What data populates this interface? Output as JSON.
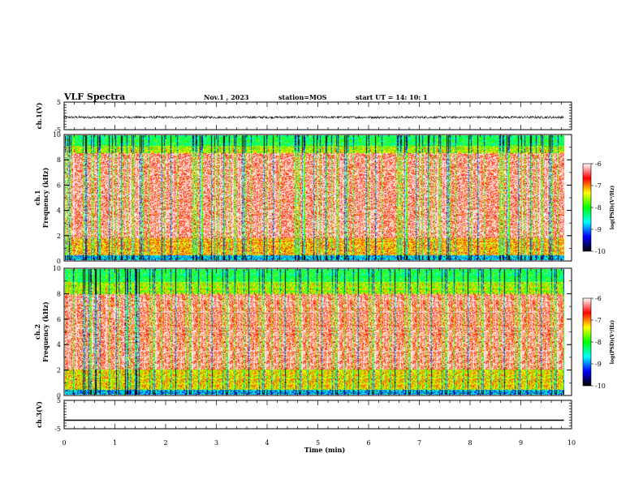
{
  "header": {
    "title": "VLF Spectra",
    "date": "Nov.1 , 2023",
    "station": "station=MOS",
    "start": "start UT = 14: 10: 1"
  },
  "chart_data": [
    {
      "type": "line",
      "panel": "ch1-waveform",
      "ylabel": "ch.1(V)",
      "ylim": [
        -5,
        5
      ],
      "yticks": [
        "5",
        "-5"
      ],
      "xlim": [
        0,
        10
      ],
      "series": [
        {
          "baseline_v": -0.5,
          "noise_amplitude_v": 0.4
        }
      ]
    },
    {
      "type": "heatmap",
      "panel": "ch1-spectrogram",
      "ylabel": "ch.1\nFrequency (kHz)",
      "ylim": [
        0,
        10
      ],
      "yticks": [
        "0",
        "2",
        "4",
        "6",
        "8",
        "10"
      ],
      "xlim": [
        0,
        9.85
      ],
      "colorbar": {
        "label": "log(PSD)(V²/Hz)",
        "range": [
          -10,
          -6
        ],
        "ticks": [
          "-6",
          "-7",
          "-8",
          "-9",
          "-10"
        ]
      }
    },
    {
      "type": "heatmap",
      "panel": "ch2-spectrogram",
      "ylabel": "ch.2\nFrequency (kHz)",
      "ylim": [
        0,
        10
      ],
      "yticks": [
        "0",
        "2",
        "4",
        "6",
        "8",
        "10"
      ],
      "xlim": [
        0,
        9.85
      ],
      "colorbar": {
        "label": "log(PSD)(V²/Hz)",
        "range": [
          -10,
          -6
        ],
        "ticks": [
          "-6",
          "-7",
          "-8",
          "-9",
          "-10"
        ]
      }
    },
    {
      "type": "line",
      "panel": "ch3-waveform",
      "ylabel": "ch.3(V)",
      "ylim": [
        -5,
        5
      ],
      "yticks": [
        "5",
        "-5"
      ],
      "xlim": [
        0,
        10
      ],
      "series": [
        {
          "constant_v": -2.0
        }
      ]
    }
  ],
  "xaxis": {
    "label": "Time (min)",
    "ticks": [
      "0",
      "1",
      "2",
      "3",
      "4",
      "5",
      "6",
      "7",
      "8",
      "9",
      "10"
    ]
  },
  "colors": {
    "frame": "#000000",
    "waveform": "#000000",
    "colormap": [
      "#000000",
      "#0000ff",
      "#00ffff",
      "#00ff00",
      "#ffff00",
      "#ff0000",
      "#ffffff"
    ]
  }
}
